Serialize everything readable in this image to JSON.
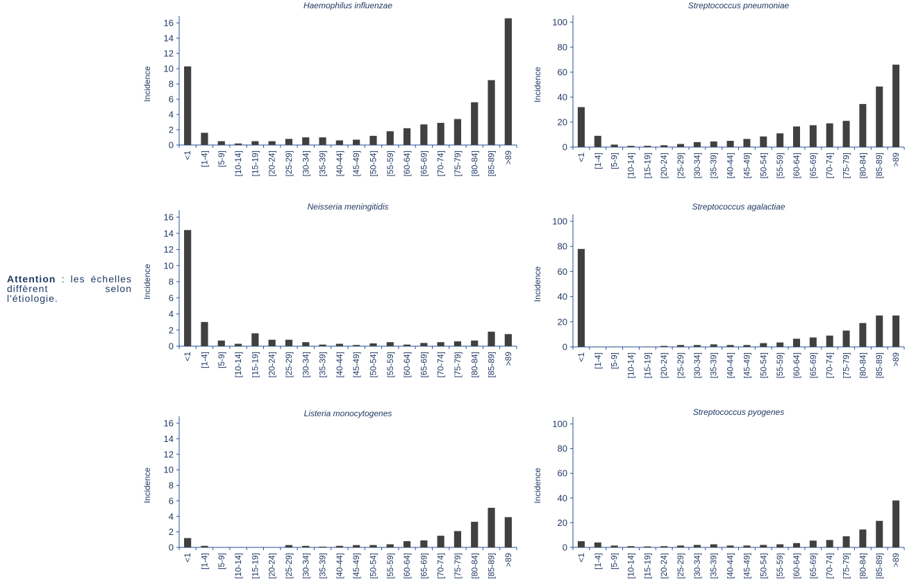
{
  "note": {
    "strong": "Attention",
    "text": " : les échelles diffèrent selon l'étiologie."
  },
  "colors": {
    "bar": "#404040",
    "axis": "#1f4e99",
    "text": "#1f3864"
  },
  "categories": [
    "<1",
    "[1-4]",
    "[5-9]",
    "[10-14]",
    "[15-19]",
    "[20-24]",
    "[25-29]",
    "[30-34]",
    "[35-39]",
    "[40-44]",
    "[45-49]",
    "[50-54]",
    "[55-59]",
    "[60-64]",
    "[65-69]",
    "[70-74]",
    "[75-79]",
    "[80-84]",
    "[85-89]",
    ">89"
  ],
  "chart_data": [
    {
      "type": "bar",
      "title": "Haemophilus influenzae",
      "ylabel": "Incidence",
      "ylim": [
        0,
        16
      ],
      "yticks": [
        0,
        2,
        4,
        6,
        8,
        10,
        12,
        14,
        16
      ],
      "values": [
        10.3,
        1.6,
        0.5,
        0.2,
        0.5,
        0.5,
        0.8,
        1.0,
        1.0,
        0.6,
        0.7,
        1.2,
        1.8,
        2.2,
        2.7,
        2.9,
        3.4,
        5.6,
        8.5,
        16.6
      ]
    },
    {
      "type": "bar",
      "title": "Streptococcus pneumoniae",
      "ylabel": "Incidence",
      "ylim": [
        0,
        100
      ],
      "yticks": [
        0,
        20,
        40,
        60,
        80,
        100
      ],
      "values": [
        32,
        9,
        2,
        1,
        1,
        1.5,
        2.5,
        4,
        4.5,
        5,
        6.5,
        8.5,
        11,
        16.5,
        17.5,
        19,
        21,
        34.5,
        48.5,
        66
      ]
    },
    {
      "type": "bar",
      "title": "Neisseria meningitidis",
      "ylabel": "Incidence",
      "ylim": [
        0,
        16
      ],
      "yticks": [
        0,
        2,
        4,
        6,
        8,
        10,
        12,
        14,
        16
      ],
      "values": [
        14.4,
        3.0,
        0.7,
        0.3,
        1.6,
        0.8,
        0.8,
        0.5,
        0.2,
        0.3,
        0.15,
        0.35,
        0.5,
        0.2,
        0.4,
        0.5,
        0.6,
        0.7,
        1.8,
        1.5
      ]
    },
    {
      "type": "bar",
      "title": "Streptococcus agalactiae",
      "ylabel": "Incidence",
      "ylim": [
        0,
        100
      ],
      "yticks": [
        0,
        20,
        40,
        60,
        80,
        100
      ],
      "values": [
        78,
        0.3,
        0.3,
        0.2,
        0.3,
        0.8,
        1.5,
        1.5,
        2,
        1.5,
        1.5,
        3,
        3.5,
        6.5,
        7.5,
        9,
        13,
        19,
        25,
        25
      ]
    },
    {
      "type": "bar",
      "title": "Listeria monocytogenes",
      "ylabel": "Incidence",
      "ylim": [
        0,
        16
      ],
      "yticks": [
        0,
        2,
        4,
        6,
        8,
        10,
        12,
        14,
        16
      ],
      "values": [
        1.2,
        0.2,
        0,
        0,
        0,
        0,
        0.3,
        0.2,
        0.1,
        0.2,
        0.3,
        0.3,
        0.4,
        0.8,
        0.9,
        1.5,
        2.1,
        3.3,
        5.1,
        3.9
      ]
    },
    {
      "type": "bar",
      "title": "Streptococcus pyogenes",
      "ylabel": "Incidence",
      "ylim": [
        0,
        100
      ],
      "yticks": [
        0,
        20,
        40,
        60,
        80,
        100
      ],
      "values": [
        5,
        4,
        1.5,
        1,
        0.8,
        1,
        1.5,
        2,
        2.5,
        1.5,
        1.5,
        2,
        2.5,
        3.5,
        5.5,
        6,
        9,
        14.5,
        21.5,
        38
      ]
    }
  ]
}
